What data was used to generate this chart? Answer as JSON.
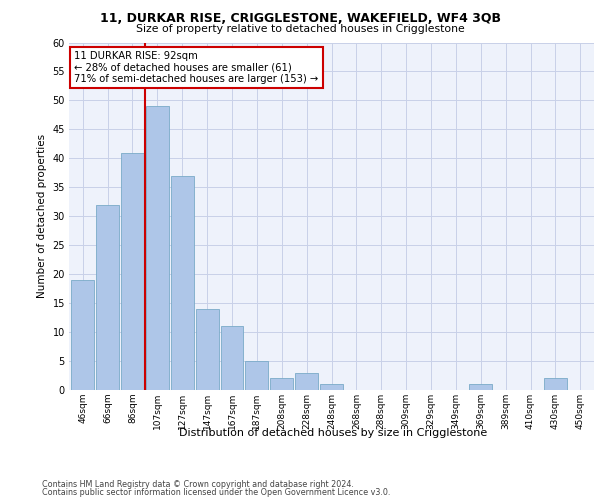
{
  "title": "11, DURKAR RISE, CRIGGLESTONE, WAKEFIELD, WF4 3QB",
  "subtitle": "Size of property relative to detached houses in Crigglestone",
  "xlabel": "Distribution of detached houses by size in Crigglestone",
  "ylabel": "Number of detached properties",
  "categories": [
    "46sqm",
    "66sqm",
    "86sqm",
    "107sqm",
    "127sqm",
    "147sqm",
    "167sqm",
    "187sqm",
    "208sqm",
    "228sqm",
    "248sqm",
    "268sqm",
    "288sqm",
    "309sqm",
    "329sqm",
    "349sqm",
    "369sqm",
    "389sqm",
    "410sqm",
    "430sqm",
    "450sqm"
  ],
  "values": [
    19,
    32,
    41,
    49,
    37,
    14,
    11,
    5,
    2,
    3,
    1,
    0,
    0,
    0,
    0,
    0,
    1,
    0,
    0,
    2,
    0
  ],
  "bar_color": "#aec6e8",
  "bar_edge_color": "#7aaac8",
  "vline_index": 3,
  "vline_color": "#cc0000",
  "annotation_text": "11 DURKAR RISE: 92sqm\n← 28% of detached houses are smaller (61)\n71% of semi-detached houses are larger (153) →",
  "annotation_box_color": "#ffffff",
  "annotation_box_edge_color": "#cc0000",
  "ylim": [
    0,
    60
  ],
  "yticks": [
    0,
    5,
    10,
    15,
    20,
    25,
    30,
    35,
    40,
    45,
    50,
    55,
    60
  ],
  "footer_line1": "Contains HM Land Registry data © Crown copyright and database right 2024.",
  "footer_line2": "Contains public sector information licensed under the Open Government Licence v3.0.",
  "bg_color": "#eef2fb",
  "grid_color": "#c8d0e8",
  "fig_bg_color": "#ffffff"
}
